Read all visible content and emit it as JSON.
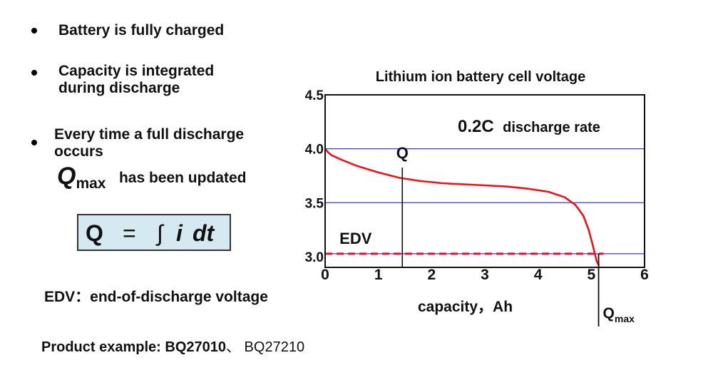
{
  "bullets": [
    {
      "lines": [
        "Battery is fully charged"
      ]
    },
    {
      "lines": [
        "Capacity is integrated",
        "during discharge"
      ]
    },
    {
      "lines": [
        "Every time a full discharge",
        "occurs"
      ]
    }
  ],
  "qmax_note": {
    "symbol": "Q",
    "subscript": "max",
    "text": "has been updated"
  },
  "formula": {
    "lhs": "Q",
    "eq": "=",
    "integral": "∫",
    "i": "i",
    "dt": "dt"
  },
  "edv_note": "EDV：end-of-discharge voltage",
  "product_example": {
    "label": "Product example: BQ27010",
    "sep": "、",
    "rest": " BQ27210"
  },
  "chart_data": {
    "type": "line",
    "title": "Lithium ion battery cell voltage",
    "subtitle_bold": "0.2C",
    "subtitle_rest": "discharge rate",
    "xlabel": "capacity，Ah",
    "xlim": [
      0,
      6
    ],
    "ylim": [
      2.9,
      4.5
    ],
    "xticks": [
      "0",
      "1",
      "2",
      "3",
      "4",
      "5",
      "6"
    ],
    "yticks": [
      "3.0",
      "3.5",
      "4.0",
      "4.5"
    ],
    "ytick_values": [
      3.0,
      3.5,
      4.0,
      4.5
    ],
    "gridlines_y": [
      3.0,
      3.5,
      4.0
    ],
    "series": [
      {
        "color": "#e8141a",
        "x": [
          0,
          0.05,
          0.12,
          0.3,
          0.6,
          1.0,
          1.4,
          1.8,
          2.2,
          2.6,
          3.0,
          3.4,
          3.8,
          4.2,
          4.5,
          4.7,
          4.85,
          4.95,
          5.02,
          5.07,
          5.1,
          5.13,
          5.15
        ],
        "y": [
          4.0,
          3.97,
          3.94,
          3.9,
          3.84,
          3.78,
          3.73,
          3.7,
          3.68,
          3.67,
          3.66,
          3.65,
          3.63,
          3.6,
          3.55,
          3.48,
          3.38,
          3.25,
          3.12,
          3.02,
          2.96,
          2.93,
          2.92
        ]
      }
    ],
    "edv_level": 3.0,
    "edv_label": "EDV",
    "q_marker": {
      "x": 1.45,
      "label": "Q"
    },
    "qmax_marker": {
      "x": 5.15,
      "label": "Q",
      "subscript": "max"
    }
  },
  "colors": {
    "curve": "#e8141a",
    "grid": "#3b3bcc",
    "edv_dash": "#d8123e",
    "formula_bg": "#d4e9f0"
  }
}
